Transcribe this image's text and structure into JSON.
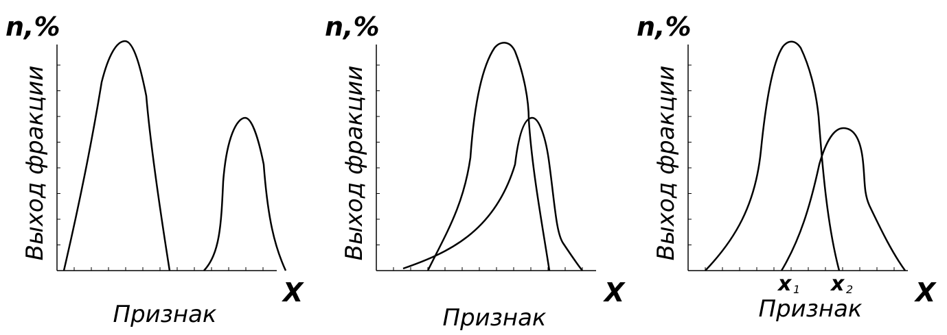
{
  "panels": [
    {
      "y_symbol": "n,%",
      "y_label": "Выход фракции",
      "x_symbol": "X",
      "x_label": "Признак"
    },
    {
      "y_symbol": "n,%",
      "y_label": "Выход фракции",
      "x_symbol": "X",
      "x_label": "Признак"
    },
    {
      "y_symbol": "n,%",
      "y_label": "Выход фракции",
      "x_symbol": "X",
      "x_label": "Признак",
      "markers": [
        {
          "symbol": "x",
          "index": "1"
        },
        {
          "symbol": "x",
          "index": "2"
        }
      ]
    }
  ]
}
